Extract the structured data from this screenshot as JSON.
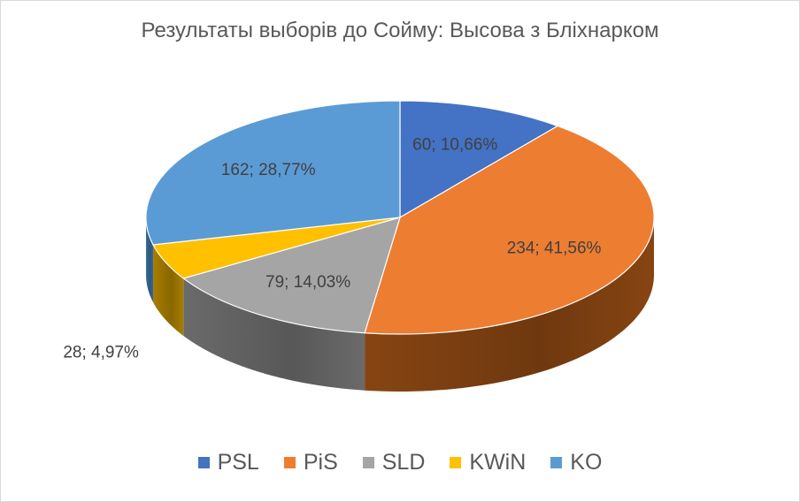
{
  "chart_data": {
    "type": "pie",
    "title": "Результаты выборів до Сойму: Высова з Бліхнарком",
    "categories": [
      "PSL",
      "PiS",
      "SLD",
      "KWiN",
      "KO"
    ],
    "values": [
      60,
      234,
      79,
      28,
      162
    ],
    "percents": [
      "10,66%",
      "41,56%",
      "14,03%",
      "4,97%",
      "28,77%"
    ],
    "data_labels": [
      "60; 10,66%",
      "234; 41,56%",
      "79; 14,03%",
      "28; 4,97%",
      "162; 28,77%"
    ],
    "colors": [
      "#4472C4",
      "#ED7D31",
      "#A5A5A5",
      "#FFC000",
      "#5B9BD5"
    ],
    "side_colors": [
      "#2D4F8E",
      "#8E4813",
      "#707070",
      "#B08400",
      "#3A6FA0"
    ],
    "legend_position": "bottom",
    "style": "3d"
  }
}
